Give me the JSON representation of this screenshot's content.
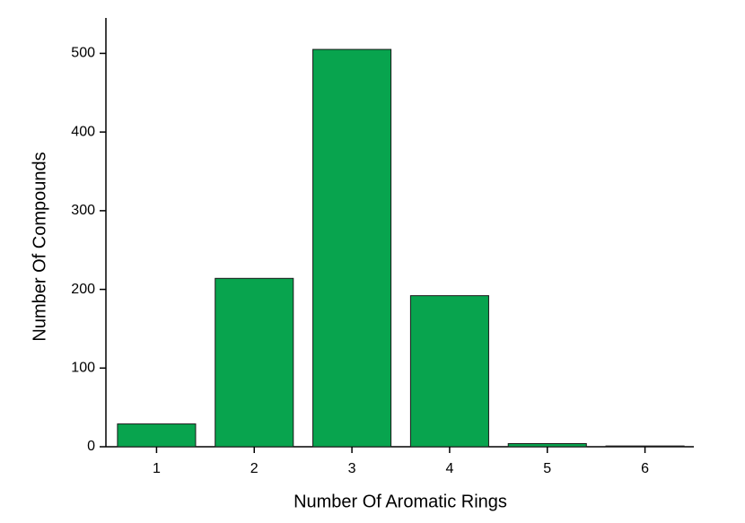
{
  "chart_data": {
    "type": "bar",
    "xlabel": "Number Of Aromatic Rings",
    "ylabel": "Number Of Compounds",
    "categories": [
      "1",
      "2",
      "3",
      "4",
      "5",
      "6"
    ],
    "values": [
      29,
      214,
      505,
      192,
      4,
      1
    ],
    "color": "#08a44e",
    "ylim": [
      0,
      545
    ],
    "yticks": [
      0,
      100,
      200,
      300,
      400,
      500
    ],
    "grid": false
  }
}
